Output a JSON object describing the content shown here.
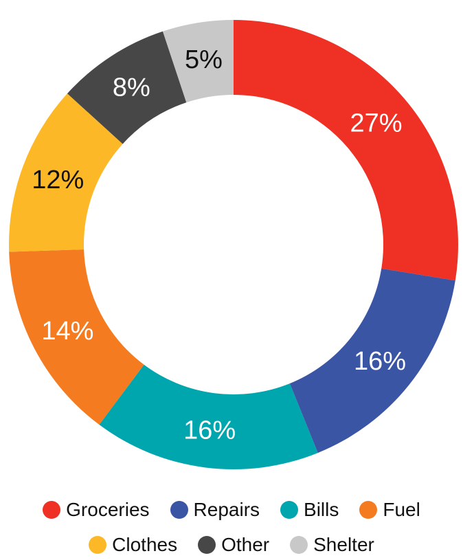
{
  "chart_data": {
    "type": "pie",
    "donut": true,
    "title": "",
    "categories": [
      "Groceries",
      "Repairs",
      "Bills",
      "Fuel",
      "Clothes",
      "Other",
      "Shelter"
    ],
    "values": [
      27,
      16,
      16,
      14,
      12,
      8,
      5
    ],
    "labels": [
      "27%",
      "16%",
      "16%",
      "14%",
      "12%",
      "8%",
      "5%"
    ],
    "colors": [
      "#ee3124",
      "#3b55a5",
      "#00a6ad",
      "#f47b20",
      "#fdb827",
      "#474747",
      "#c8c8c8"
    ],
    "label_colors": [
      "#ffffff",
      "#ffffff",
      "#ffffff",
      "#ffffff",
      "#111111",
      "#ffffff",
      "#111111"
    ],
    "legend_position": "bottom"
  }
}
